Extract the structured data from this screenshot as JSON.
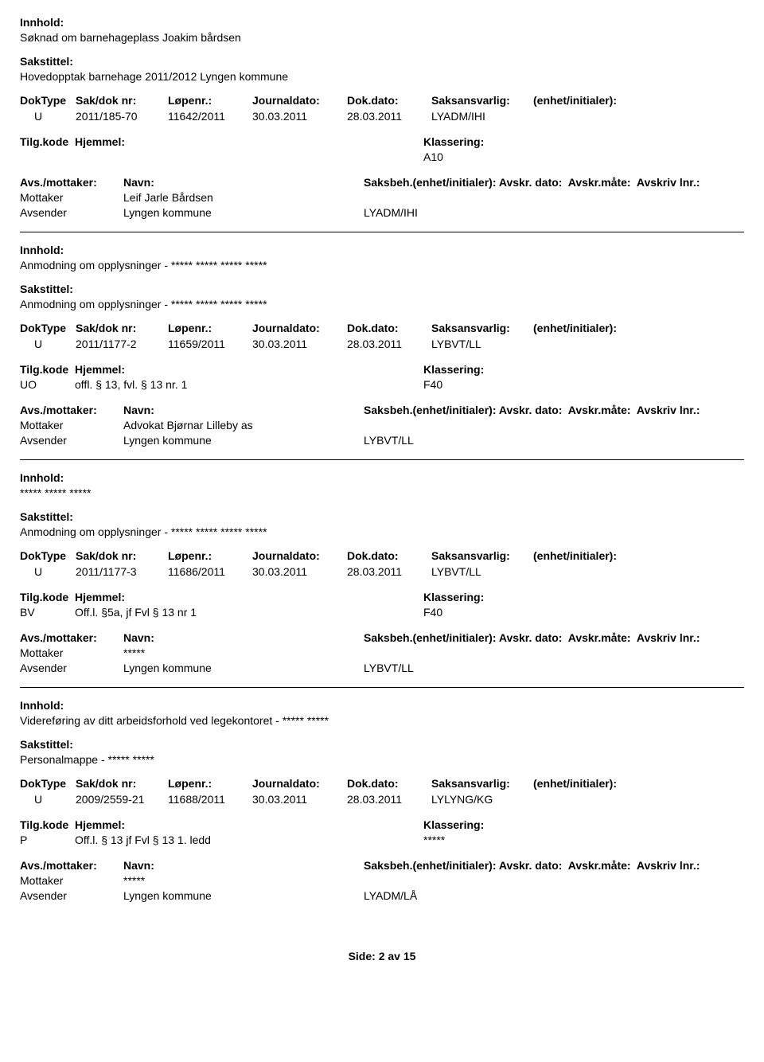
{
  "labels": {
    "innhold": "Innhold:",
    "sakstittel": "Sakstittel:",
    "doktype": "DokType",
    "saknr": "Sak/dok nr:",
    "lopenr": "Løpenr.:",
    "journaldato": "Journaldato:",
    "dokdato": "Dok.dato:",
    "saksansvarlig": "Saksansvarlig:",
    "enhet": "(enhet/initialer):",
    "tilgkode": "Tilg.kode",
    "hjemmel": "Hjemmel:",
    "klassering": "Klassering:",
    "avsmottaker": "Avs./mottaker:",
    "navn": "Navn:",
    "saksbeh_line": "Saksbeh.(enhet/initialer): Avskr. dato:  Avskr.måte:  Avskriv lnr.:",
    "mottaker": "Mottaker",
    "avsender": "Avsender"
  },
  "records": [
    {
      "innhold": "Søknad om barnehageplass Joakim bårdsen",
      "sakstittel": "Hovedopptak barnehage 2011/2012 Lyngen kommune",
      "doktype": "U",
      "saknr": "2011/185-70",
      "lopenr": "11642/2011",
      "journaldato": "30.03.2011",
      "dokdato": "28.03.2011",
      "saksansvarlig": "LYADM/IHI",
      "tilgkode": "",
      "hjemmelval": "",
      "klassering": "A10",
      "mottaker_name": "Leif Jarle Bårdsen",
      "avsender_name": "Lyngen kommune",
      "saksbeh_val": "LYADM/IHI"
    },
    {
      "innhold": "Anmodning om opplysninger - ***** ***** ***** *****",
      "sakstittel": "Anmodning om opplysninger - ***** ***** ***** *****",
      "doktype": "U",
      "saknr": "2011/1177-2",
      "lopenr": "11659/2011",
      "journaldato": "30.03.2011",
      "dokdato": "28.03.2011",
      "saksansvarlig": "LYBVT/LL",
      "tilgkode": "UO",
      "hjemmelval": "offl. § 13, fvl. § 13 nr. 1",
      "klassering": "F40",
      "mottaker_name": "Advokat Bjørnar Lilleby as",
      "avsender_name": "Lyngen kommune",
      "saksbeh_val": "LYBVT/LL"
    },
    {
      "innhold": "***** ***** *****",
      "sakstittel": "Anmodning om opplysninger - ***** ***** ***** *****",
      "doktype": "U",
      "saknr": "2011/1177-3",
      "lopenr": "11686/2011",
      "journaldato": "30.03.2011",
      "dokdato": "28.03.2011",
      "saksansvarlig": "LYBVT/LL",
      "tilgkode": "BV",
      "hjemmelval": "Off.l. §5a, jf Fvl § 13  nr 1",
      "klassering": "F40",
      "mottaker_name": "*****",
      "avsender_name": "Lyngen kommune",
      "saksbeh_val": "LYBVT/LL"
    },
    {
      "innhold": "Videreføring av ditt arbeidsforhold ved legekontoret - ***** *****",
      "sakstittel": "Personalmappe - ***** *****",
      "doktype": "U",
      "saknr": "2009/2559-21",
      "lopenr": "11688/2011",
      "journaldato": "30.03.2011",
      "dokdato": "28.03.2011",
      "saksansvarlig": "LYLYNG/KG",
      "tilgkode": "P",
      "hjemmelval": "Off.l. § 13 jf Fvl § 13 1. ledd",
      "klassering": "*****",
      "mottaker_name": "*****",
      "avsender_name": "Lyngen kommune",
      "saksbeh_val": "LYADM/LÅ"
    }
  ],
  "footer": "Side:  2 av  15"
}
